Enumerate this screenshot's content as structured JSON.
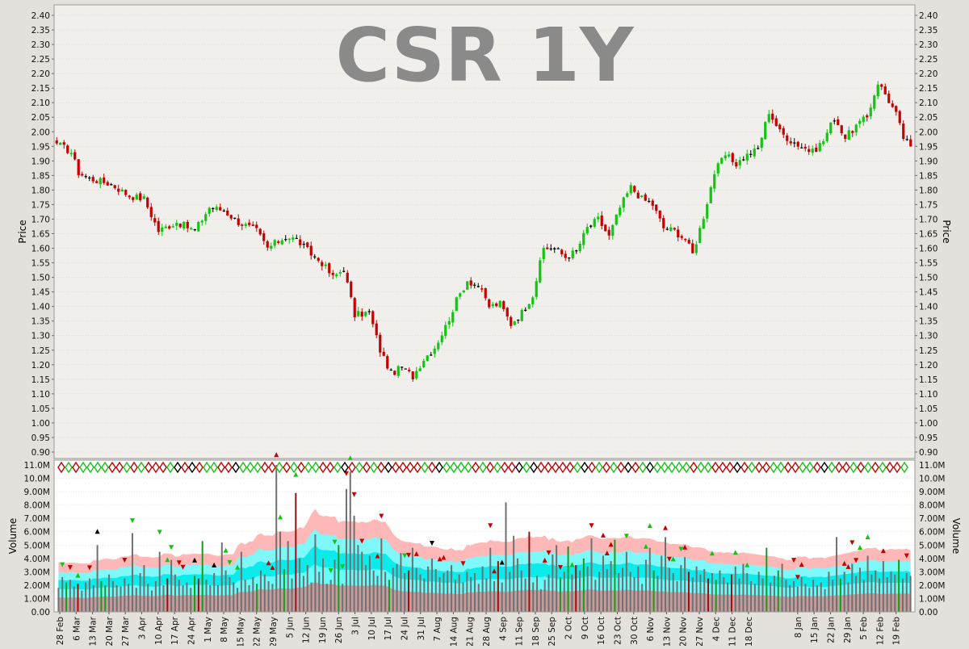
{
  "title": "CSR  1Y",
  "colors": {
    "up": "#13c413",
    "down": "#c40000",
    "neutral": "#000000",
    "price_panel_bg": "#f0efeb",
    "volume_panel_bg": "#ffffff",
    "band_outer": "#ffb0b0",
    "band_mid": "#70ffff",
    "band_inner": "#00e8e8",
    "band_low": "#d09090",
    "volume_bar": "#707070",
    "grid": "#d2d2d2",
    "title": "#8a8a8a"
  },
  "chart_data": [
    {
      "type": "candlestick",
      "title": "CSR  1Y",
      "ylabel": "Price",
      "ylim": [
        0.9,
        2.4
      ],
      "y_ticks": [
        "0.90",
        "0.95",
        "1.00",
        "1.05",
        "1.10",
        "1.15",
        "1.20",
        "1.25",
        "1.30",
        "1.35",
        "1.40",
        "1.45",
        "1.50",
        "1.55",
        "1.60",
        "1.65",
        "1.70",
        "1.75",
        "1.80",
        "1.85",
        "1.90",
        "1.95",
        "2.00",
        "2.05",
        "2.10",
        "2.15",
        "2.20",
        "2.25",
        "2.30",
        "2.35",
        "2.40"
      ],
      "grid": true,
      "price_path": [
        [
          0,
          1.96
        ],
        [
          4,
          1.93
        ],
        [
          6,
          1.86
        ],
        [
          9,
          1.84
        ],
        [
          12,
          1.83
        ],
        [
          15,
          1.82
        ],
        [
          20,
          1.78
        ],
        [
          24,
          1.77
        ],
        [
          28,
          1.66
        ],
        [
          33,
          1.69
        ],
        [
          38,
          1.66
        ],
        [
          42,
          1.74
        ],
        [
          46,
          1.73
        ],
        [
          50,
          1.69
        ],
        [
          55,
          1.66
        ],
        [
          58,
          1.6
        ],
        [
          63,
          1.64
        ],
        [
          66,
          1.63
        ],
        [
          70,
          1.58
        ],
        [
          73,
          1.55
        ],
        [
          76,
          1.5
        ],
        [
          79,
          1.53
        ],
        [
          82,
          1.37
        ],
        [
          86,
          1.38
        ],
        [
          89,
          1.25
        ],
        [
          92,
          1.17
        ],
        [
          95,
          1.19
        ],
        [
          98,
          1.16
        ],
        [
          101,
          1.22
        ],
        [
          104,
          1.26
        ],
        [
          107,
          1.33
        ],
        [
          110,
          1.42
        ],
        [
          113,
          1.49
        ],
        [
          116,
          1.47
        ],
        [
          119,
          1.4
        ],
        [
          122,
          1.41
        ],
        [
          125,
          1.34
        ],
        [
          128,
          1.38
        ],
        [
          131,
          1.44
        ],
        [
          134,
          1.6
        ],
        [
          137,
          1.6
        ],
        [
          140,
          1.57
        ],
        [
          143,
          1.59
        ],
        [
          146,
          1.67
        ],
        [
          149,
          1.7
        ],
        [
          152,
          1.64
        ],
        [
          155,
          1.74
        ],
        [
          158,
          1.81
        ],
        [
          161,
          1.77
        ],
        [
          164,
          1.75
        ],
        [
          167,
          1.67
        ],
        [
          170,
          1.66
        ],
        [
          173,
          1.63
        ],
        [
          175,
          1.58
        ],
        [
          178,
          1.71
        ],
        [
          181,
          1.86
        ],
        [
          184,
          1.92
        ],
        [
          187,
          1.89
        ],
        [
          190,
          1.92
        ],
        [
          193,
          1.94
        ],
        [
          196,
          2.07
        ],
        [
          199,
          2.0
        ],
        [
          202,
          1.97
        ],
        [
          205,
          1.95
        ],
        [
          208,
          1.93
        ],
        [
          211,
          1.97
        ],
        [
          214,
          2.05
        ],
        [
          217,
          1.98
        ],
        [
          220,
          2.02
        ],
        [
          223,
          2.05
        ],
        [
          226,
          2.17
        ],
        [
          228,
          2.13
        ],
        [
          231,
          2.06
        ],
        [
          233,
          1.98
        ],
        [
          235,
          1.95
        ]
      ],
      "volume_bars": [
        1.8,
        2.6,
        2.2,
        2.4,
        1.9,
        2.1,
        1.6,
        2.2,
        2.5,
        2.0,
        5.0,
        2.3,
        2.0,
        2.8,
        2.3,
        2.0,
        1.9,
        2.5,
        2.1,
        5.9,
        1.8,
        2.9,
        3.5,
        2.1,
        1.6,
        2.3,
        4.5,
        2.0,
        2.5,
        3.9,
        2.8,
        2.4,
        2.0,
        2.2,
        1.8,
        2.7,
        2.5,
        5.3,
        2.4,
        2.0,
        2.9,
        2.0,
        5.2,
        3.1,
        2.6,
        2.2,
        1.8,
        4.5,
        2.4,
        2.0,
        2.6,
        2.1,
        3.1,
        2.8,
        2.3,
        2.1,
        11.0,
        6.0,
        3.2,
        5.3,
        2.5,
        8.9,
        4.0,
        2.7,
        3.5,
        2.2,
        5.8,
        3.0,
        4.0,
        2.1,
        2.4,
        3.9,
        5.0,
        2.1,
        9.2,
        10.5,
        7.2,
        5.0,
        4.5,
        3.5,
        4.2,
        3.1,
        2.7,
        5.5,
        3.0,
        2.4,
        3.3,
        3.6,
        4.4,
        2.9,
        3.1,
        4.8,
        3.3,
        2.8,
        2.5,
        3.4,
        4.0,
        3.2,
        2.6,
        2.9,
        3.1,
        3.5,
        2.4,
        2.8,
        2.2,
        3.0,
        2.6,
        2.9,
        2.1,
        3.4,
        2.5,
        4.8,
        2.3,
        3.8,
        2.2,
        8.2,
        3.0,
        5.7,
        4.0,
        3.1,
        2.5,
        6.0,
        2.2,
        2.7,
        1.7,
        2.4,
        2.8,
        4.3,
        5.0,
        2.6,
        3.0,
        4.9,
        2.8,
        3.5,
        3.1,
        4.0,
        3.4,
        5.5,
        2.4,
        3.0,
        4.2,
        3.2,
        3.8,
        5.4,
        2.9,
        3.3,
        4.5,
        3.0,
        2.6,
        3.4,
        2.1,
        3.9,
        4.8,
        3.1,
        2.7,
        4.2,
        5.6,
        3.3,
        2.9,
        2.3,
        3.5,
        4.1,
        3.0,
        2.6,
        3.4,
        2.8,
        3.2,
        2.5,
        2.9,
        2.4,
        3.1,
        2.6,
        2.2,
        2.8,
        3.4,
        2.5,
        3.6,
        2.9,
        2.3,
        2.1,
        3.0,
        2.5,
        4.8,
        2.2,
        2.7,
        3.1,
        3.6,
        2.4,
        2.0,
        2.3,
        1.9,
        2.6,
        2.1,
        1.8,
        2.4,
        2.0,
        2.2,
        1.7,
        3.0,
        2.4,
        5.6,
        2.5,
        3.0,
        2.2,
        3.6,
        2.7,
        3.3,
        2.4,
        4.2,
        2.8,
        3.1,
        2.5,
        3.8,
        2.6,
        3.0,
        2.8,
        3.9,
        2.5,
        2.9,
        2.7
      ]
    },
    {
      "type": "bar",
      "ylabel": "Volume",
      "ylim": [
        0,
        11000000
      ],
      "y_ticks": [
        "0.00",
        "1.00M",
        "2.00M",
        "3.00M",
        "4.00M",
        "5.00M",
        "6.00M",
        "7.00M",
        "8.00M",
        "9.00M",
        "10.0M",
        "11.0M"
      ],
      "x_ticks": [
        "28 Feb",
        "6 Mar",
        "13 Mar",
        "20 Mar",
        "27 Mar",
        "3 Apr",
        "10 Apr",
        "17 Apr",
        "24 Apr",
        "1 May",
        "8 May",
        "15 May",
        "22 May",
        "29 May",
        "5 Jun",
        "12 Jun",
        "19 Jun",
        "26 Jun",
        "3 Jul",
        "10 Jul",
        "17 Jul",
        "24 Jul",
        "31 Jul",
        "7 Aug",
        "14 Aug",
        "21 Aug",
        "28 Aug",
        "4 Sep",
        "11 Sep",
        "18 Sep",
        "25 Sep",
        "2 Oct",
        "9 Oct",
        "16 Oct",
        "23 Oct",
        "30 Oct",
        "6 Nov",
        "13 Nov",
        "20 Nov",
        "27 Nov",
        "4 Dec",
        "11 Dec",
        "18 Dec",
        "8 Jan",
        "15 Jan",
        "22 Jan",
        "29 Jan",
        "5 Feb",
        "12 Feb",
        "19 Feb"
      ],
      "grid": true
    }
  ]
}
